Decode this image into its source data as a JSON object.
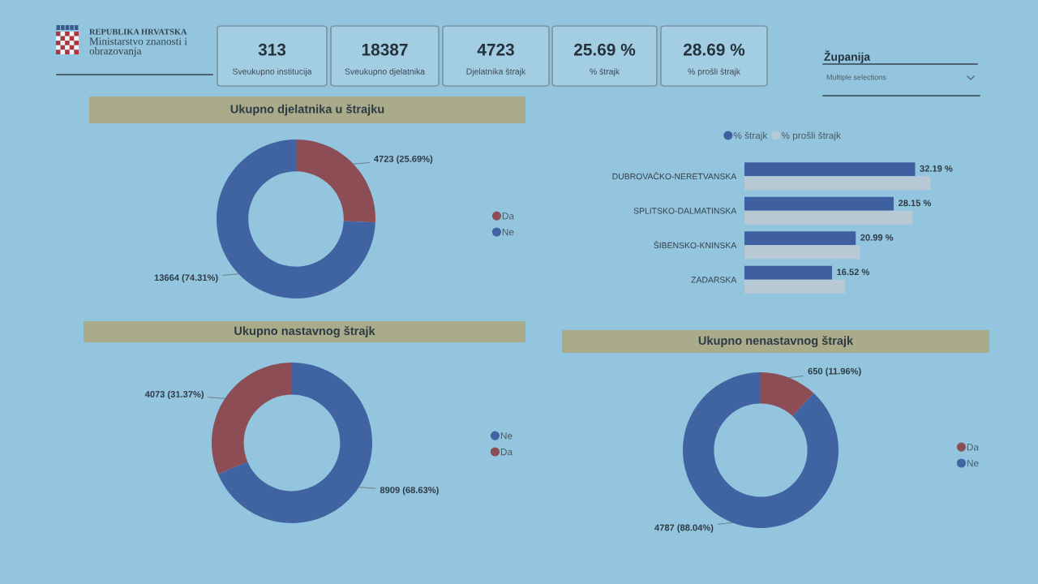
{
  "chart_data": [
    {
      "type": "other",
      "annotations": [
        "REPUBLIKA HRVATSKA",
        "Ministarstvo znanosti i\nobrazovanja",
        "313",
        "Sveukupno institucija",
        "18387",
        "Sveukupno djelatnika",
        "4723",
        "Djelatnika štrajk",
        "25.69 %",
        "% štrajk",
        "28.69 %",
        "% prošli štrajk",
        "Županija",
        "Multiple selections"
      ]
    },
    {
      "type": "donut",
      "title": "Ukupno djelatnika u štrajku",
      "categories": [
        "Da",
        "Ne"
      ],
      "values": [
        4723,
        13664
      ],
      "colors": [
        "#8c4d55",
        "#4064a2"
      ],
      "value_labels": [
        "4723 (25.69%)",
        "13664 (74.31%)"
      ],
      "legend": "right"
    },
    {
      "type": "bar",
      "orientation": "horizontal",
      "categories": [
        "DUBROVAČKO-NERETVANSKA",
        "SPLITSKO-DALMATINSKA",
        "ŠIBENSKO-KNINSKA",
        "ZADARSKA"
      ],
      "series": [
        {
          "name": "% štrajk",
          "color": "#3f60a0",
          "values": [
            32.19,
            28.15,
            20.99,
            16.52
          ],
          "value_labels": [
            "32.19 %",
            "28.15 %",
            "20.99 %",
            "16.52 %"
          ]
        },
        {
          "name": "% prošli štrajk",
          "color": "#b6c9d5",
          "values": [
            35.1,
            31.7,
            21.8,
            19.0
          ]
        }
      ],
      "legend": "top",
      "tick_labels": "y"
    },
    {
      "type": "donut",
      "title": "Ukupno nastavnog štrajk",
      "categories": [
        "Ne",
        "Da"
      ],
      "values": [
        8909,
        4073
      ],
      "colors": [
        "#4064a2",
        "#8c4d55"
      ],
      "value_labels": [
        "8909 (68.63%)",
        "4073 (31.37%)"
      ],
      "legend": "right"
    },
    {
      "type": "donut",
      "title": "Ukupno nenastavnog štrajk",
      "categories": [
        "Da",
        "Ne"
      ],
      "values": [
        650,
        4787
      ],
      "colors": [
        "#8c4d55",
        "#4064a2"
      ],
      "value_labels": [
        "650 (11.96%)",
        "4787 (88.04%)"
      ],
      "legend": "right"
    }
  ]
}
